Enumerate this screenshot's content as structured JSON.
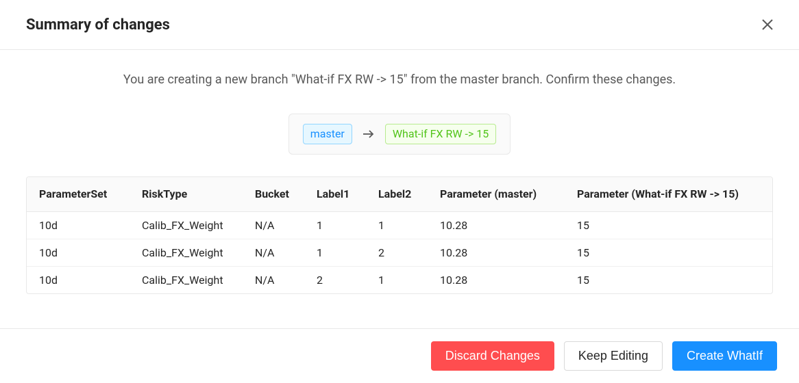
{
  "header": {
    "title": "Summary of changes"
  },
  "description": "You are creating a new branch \"What-if FX RW -> 15\" from the master branch. Confirm these changes.",
  "branches": {
    "source_label": "master",
    "target_label": "What-if FX RW -> 15",
    "source_color": "#1890ff",
    "source_bg": "#e6f7ff",
    "source_border": "#91d5ff",
    "target_color": "#52c41a",
    "target_bg": "#f6ffed",
    "target_border": "#b7eb8f"
  },
  "table": {
    "columns": [
      "ParameterSet",
      "RiskType",
      "Bucket",
      "Label1",
      "Label2",
      "Parameter (master)",
      "Parameter (What-if FX RW -> 15)"
    ],
    "rows": [
      [
        "10d",
        "Calib_FX_Weight",
        "N/A",
        "1",
        "1",
        "10.28",
        "15"
      ],
      [
        "10d",
        "Calib_FX_Weight",
        "N/A",
        "1",
        "2",
        "10.28",
        "15"
      ],
      [
        "10d",
        "Calib_FX_Weight",
        "N/A",
        "2",
        "1",
        "10.28",
        "15"
      ]
    ]
  },
  "footer": {
    "discard_label": "Discard Changes",
    "keep_label": "Keep Editing",
    "create_label": "Create WhatIf"
  },
  "colors": {
    "danger": "#ff4d4f",
    "primary": "#1890ff",
    "border": "#e8e8e8",
    "text": "#262626",
    "muted": "#595959"
  }
}
